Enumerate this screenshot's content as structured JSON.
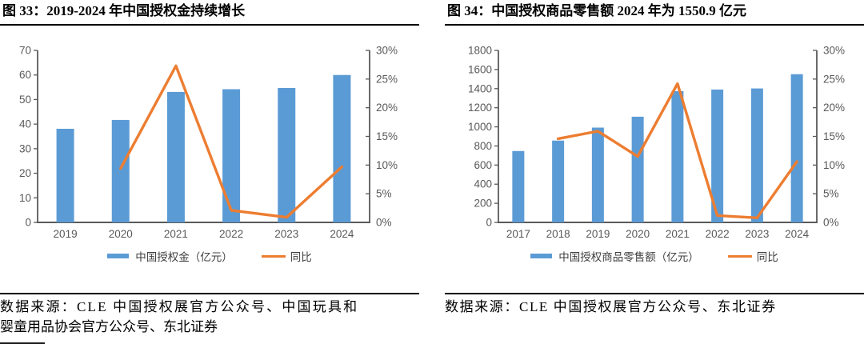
{
  "colors": {
    "bar_blue": "#5B9BD5",
    "line_orange": "#ED7D31",
    "axis_gray": "#595959",
    "title_black": "#000000"
  },
  "figures": [
    {
      "title": "图 33：2019-2024 年中国授权金持续增长",
      "source_lines": [
        "数据来源：CLE 中国授权展官方公众号、中国玩具和",
        "婴童用品协会官方公众号、东北证券"
      ],
      "chart_data": {
        "type": "bar+line",
        "title": "2019-2024 年中国授权金持续增长",
        "categories": [
          "2019",
          "2020",
          "2021",
          "2022",
          "2023",
          "2024"
        ],
        "series": [
          {
            "name": "中国授权金（亿元）",
            "type": "bar",
            "axis": "left",
            "values": [
              38.1,
              41.7,
              53.1,
              54.2,
              54.7,
              60.0
            ]
          },
          {
            "name": "同比",
            "type": "line",
            "axis": "right",
            "values": [
              null,
              9.4,
              27.3,
              2.1,
              0.9,
              9.7
            ]
          }
        ],
        "left_axis": {
          "min": 0,
          "max": 70,
          "step": 10,
          "ticks": [
            "0",
            "10",
            "20",
            "30",
            "40",
            "50",
            "60",
            "70"
          ]
        },
        "right_axis": {
          "min": 0,
          "max": 30,
          "step": 5,
          "ticks": [
            "0%",
            "5%",
            "10%",
            "15%",
            "20%",
            "25%",
            "30%"
          ]
        },
        "grid": false,
        "legend_position": "bottom"
      }
    },
    {
      "title": "图 34：中国授权商品零售额 2024 年为 1550.9 亿元",
      "source_lines": [
        "数据来源：CLE 中国授权展官方公众号、东北证券"
      ],
      "chart_data": {
        "type": "bar+line",
        "title": "中国授权商品零售额 2024 年为 1550.9 亿元",
        "categories": [
          "2017",
          "2018",
          "2019",
          "2020",
          "2021",
          "2022",
          "2023",
          "2024"
        ],
        "series": [
          {
            "name": "中国授权商品零售额（亿元）",
            "type": "bar",
            "axis": "left",
            "values": [
              747,
              856,
              992,
              1106,
              1374,
              1390.4,
              1401.7,
              1550.9
            ]
          },
          {
            "name": "同比",
            "type": "line",
            "axis": "right",
            "values": [
              null,
              14.6,
              15.9,
              11.5,
              24.2,
              1.2,
              0.8,
              10.6
            ]
          }
        ],
        "left_axis": {
          "min": 0,
          "max": 1800,
          "step": 200,
          "ticks": [
            "0",
            "200",
            "400",
            "600",
            "800",
            "1000",
            "1200",
            "1400",
            "1600",
            "1800"
          ]
        },
        "right_axis": {
          "min": 0,
          "max": 30,
          "step": 5,
          "ticks": [
            "0%",
            "5%",
            "10%",
            "15%",
            "20%",
            "25%",
            "30%"
          ]
        },
        "grid": false,
        "legend_position": "bottom"
      }
    }
  ]
}
